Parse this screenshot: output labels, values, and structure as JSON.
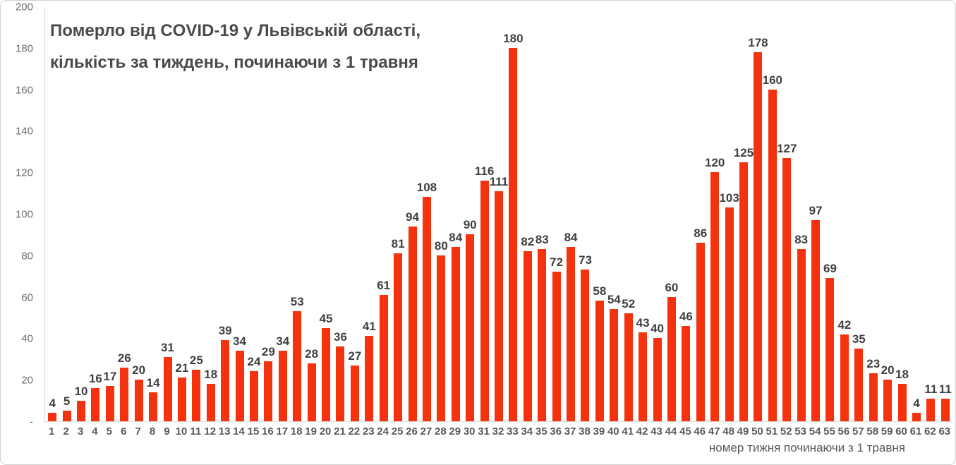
{
  "title": {
    "line1": "Померло від COVID-19 у Львівській області,",
    "line2": "кількість за тиждень, починаючи з 1 травня"
  },
  "axes": {
    "x_title": "номер тижня починаючи з 1 травня",
    "y_tick_labels": [
      "200",
      "180",
      "160",
      "140",
      "120",
      "100",
      "80",
      "60",
      "40",
      "20",
      "-"
    ],
    "y_tick_values": [
      200,
      180,
      160,
      140,
      120,
      100,
      80,
      60,
      40,
      20,
      0
    ]
  },
  "colors": {
    "bar": "#f4320e",
    "data_label": "#404040",
    "axis_text": "#595959",
    "axis_line": "#d9d9d9",
    "title_text": "#4a4a4a"
  },
  "chart_data": {
    "type": "bar",
    "title": "Померло від COVID-19 у Львівській області, кількість за тиждень, починаючи з 1 травня",
    "xlabel": "номер тижня починаючи з 1 травня",
    "ylabel": "",
    "ylim": [
      0,
      200
    ],
    "grid": false,
    "legend": false,
    "data_labels": true,
    "categories": [
      1,
      2,
      3,
      4,
      5,
      6,
      7,
      8,
      9,
      10,
      11,
      12,
      13,
      14,
      15,
      16,
      17,
      18,
      19,
      20,
      21,
      22,
      23,
      24,
      25,
      26,
      27,
      28,
      29,
      30,
      31,
      32,
      33,
      34,
      35,
      36,
      37,
      38,
      39,
      40,
      41,
      42,
      43,
      44,
      45,
      46,
      47,
      48,
      49,
      50,
      51,
      52,
      53,
      54,
      55,
      56,
      57,
      58,
      59,
      60,
      61,
      62,
      63
    ],
    "values": [
      4,
      5,
      10,
      16,
      17,
      26,
      20,
      14,
      31,
      21,
      25,
      18,
      39,
      34,
      24,
      29,
      34,
      53,
      28,
      45,
      36,
      27,
      41,
      61,
      81,
      94,
      108,
      80,
      84,
      90,
      116,
      111,
      180,
      82,
      83,
      72,
      84,
      73,
      58,
      54,
      52,
      43,
      40,
      60,
      46,
      86,
      120,
      103,
      125,
      178,
      160,
      127,
      83,
      97,
      69,
      42,
      35,
      23,
      20,
      18,
      4,
      11,
      11
    ]
  }
}
